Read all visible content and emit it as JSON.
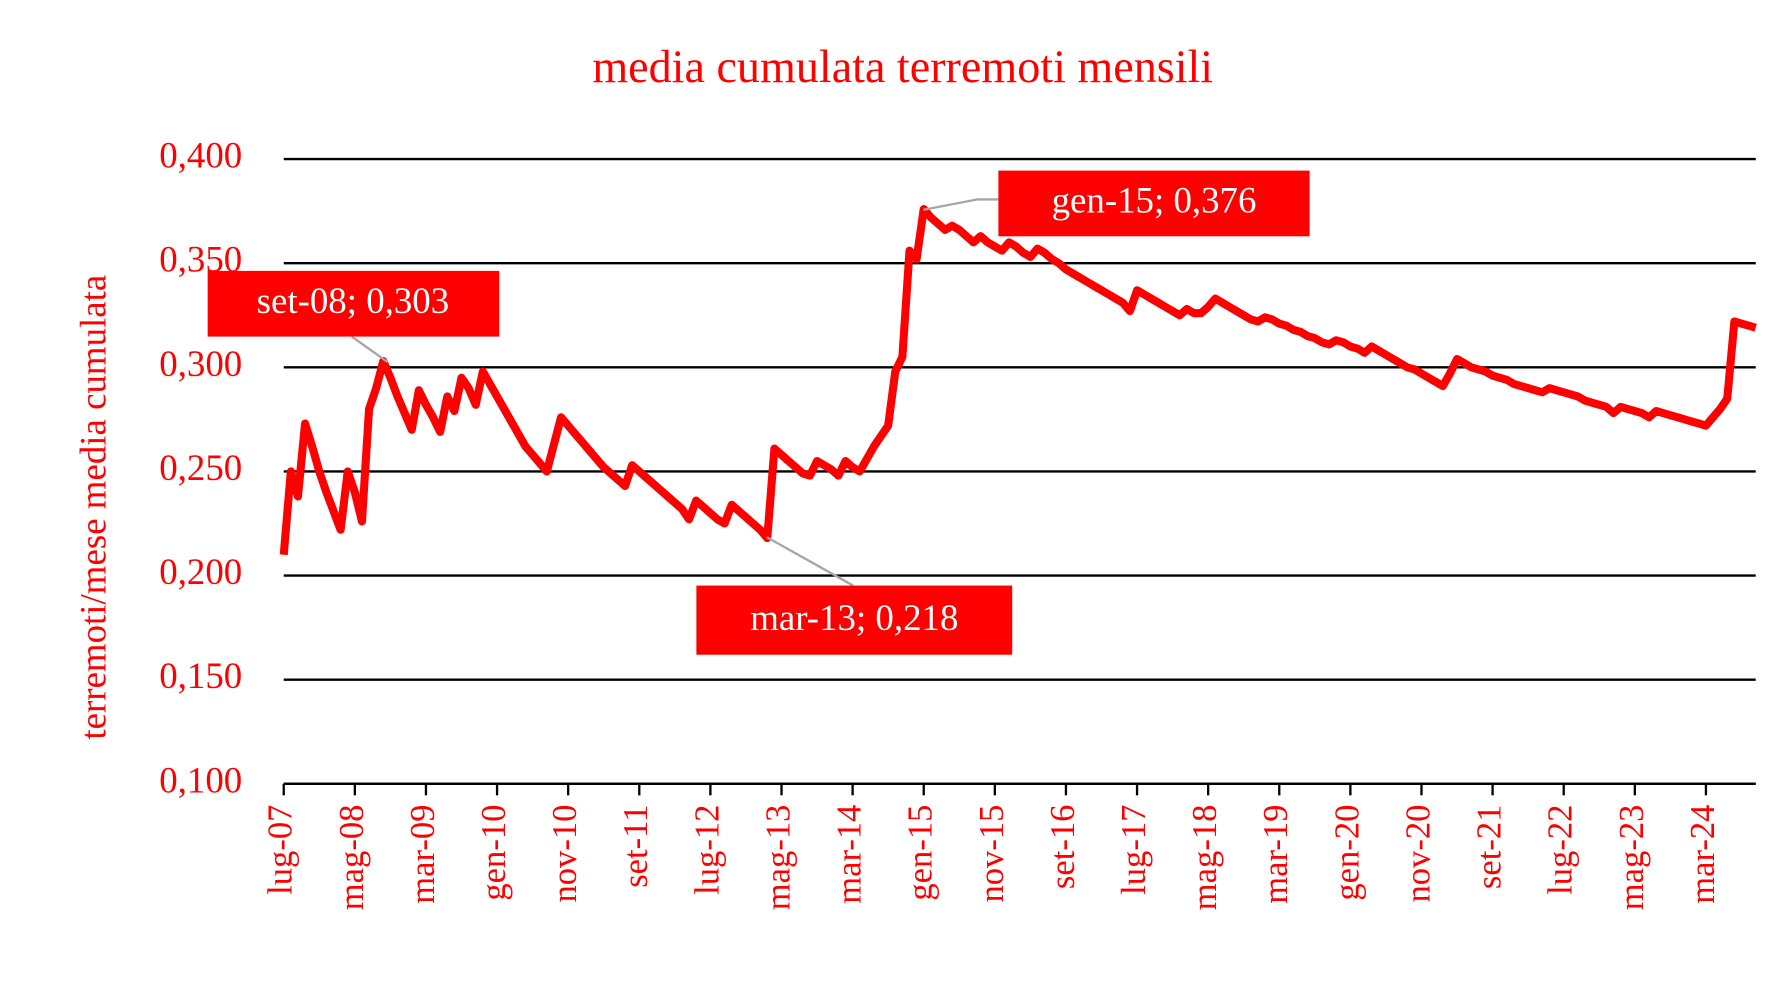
{
  "chart_data": {
    "type": "line",
    "title": "media cumulata terremoti mensili",
    "y_label": "terremoti/mese media cumulata",
    "categories": [
      "lug-07",
      null,
      null,
      null,
      null,
      null,
      null,
      null,
      null,
      null,
      "mag-08",
      null,
      null,
      null,
      null,
      null,
      null,
      null,
      null,
      null,
      "mar-09",
      null,
      null,
      null,
      null,
      null,
      null,
      null,
      null,
      null,
      "gen-10",
      null,
      null,
      null,
      null,
      null,
      null,
      null,
      null,
      null,
      "nov-10",
      null,
      null,
      null,
      null,
      null,
      null,
      null,
      null,
      null,
      "set-11",
      null,
      null,
      null,
      null,
      null,
      null,
      null,
      null,
      null,
      "lug-12",
      null,
      null,
      null,
      null,
      null,
      null,
      null,
      null,
      null,
      "mag-13",
      null,
      null,
      null,
      null,
      null,
      null,
      null,
      null,
      null,
      "mar-14",
      null,
      null,
      null,
      null,
      null,
      null,
      null,
      null,
      null,
      "gen-15",
      null,
      null,
      null,
      null,
      null,
      null,
      null,
      null,
      null,
      "nov-15",
      null,
      null,
      null,
      null,
      null,
      null,
      null,
      null,
      null,
      "set-16",
      null,
      null,
      null,
      null,
      null,
      null,
      null,
      null,
      null,
      "lug-17",
      null,
      null,
      null,
      null,
      null,
      null,
      null,
      null,
      null,
      "mag-18",
      null,
      null,
      null,
      null,
      null,
      null,
      null,
      null,
      null,
      "mar-19",
      null,
      null,
      null,
      null,
      null,
      null,
      null,
      null,
      null,
      "gen-20",
      null,
      null,
      null,
      null,
      null,
      null,
      null,
      null,
      null,
      "nov-20",
      null,
      null,
      null,
      null,
      null,
      null,
      null,
      null,
      null,
      "set-21",
      null,
      null,
      null,
      null,
      null,
      null,
      null,
      null,
      null,
      "lug-22",
      null,
      null,
      null,
      null,
      null,
      null,
      null,
      null,
      null,
      "mag-23",
      null,
      null,
      null,
      null,
      null,
      null,
      null,
      null,
      null,
      "mar-24",
      null,
      null,
      null,
      null,
      null,
      null,
      null
    ],
    "series": [
      {
        "name": "media cumulata",
        "color": "#ff0000",
        "values": [
          0.21,
          0.25,
          0.238,
          0.273,
          0.262,
          0.25,
          0.24,
          0.231,
          0.222,
          0.25,
          0.24,
          0.226,
          0.28,
          0.29,
          0.303,
          0.295,
          0.286,
          0.278,
          0.27,
          0.289,
          0.282,
          0.276,
          0.269,
          0.286,
          0.279,
          0.295,
          0.29,
          0.282,
          0.298,
          0.292,
          0.286,
          0.28,
          0.274,
          0.268,
          0.262,
          0.258,
          0.254,
          0.25,
          0.263,
          0.276,
          0.272,
          0.268,
          0.264,
          0.26,
          0.256,
          0.252,
          0.249,
          0.246,
          0.243,
          0.253,
          0.25,
          0.247,
          0.244,
          0.241,
          0.238,
          0.235,
          0.232,
          0.227,
          0.236,
          0.233,
          0.23,
          0.227,
          0.225,
          0.234,
          0.231,
          0.228,
          0.225,
          0.222,
          0.218,
          0.261,
          0.258,
          0.255,
          0.252,
          0.249,
          0.248,
          0.255,
          0.253,
          0.251,
          0.248,
          0.255,
          0.252,
          0.25,
          0.256,
          0.262,
          0.267,
          0.272,
          0.298,
          0.305,
          0.356,
          0.352,
          0.376,
          0.372,
          0.369,
          0.366,
          0.368,
          0.366,
          0.363,
          0.36,
          0.363,
          0.36,
          0.358,
          0.356,
          0.36,
          0.358,
          0.355,
          0.353,
          0.357,
          0.355,
          0.352,
          0.35,
          0.347,
          0.345,
          0.343,
          0.341,
          0.339,
          0.337,
          0.335,
          0.333,
          0.331,
          0.327,
          0.337,
          0.335,
          0.333,
          0.331,
          0.329,
          0.327,
          0.325,
          0.328,
          0.326,
          0.326,
          0.329,
          0.333,
          0.331,
          0.329,
          0.327,
          0.325,
          0.323,
          0.322,
          0.324,
          0.323,
          0.321,
          0.32,
          0.318,
          0.317,
          0.315,
          0.314,
          0.312,
          0.311,
          0.313,
          0.312,
          0.31,
          0.309,
          0.307,
          0.31,
          0.308,
          0.306,
          0.304,
          0.302,
          0.3,
          0.299,
          0.297,
          0.295,
          0.293,
          0.291,
          0.297,
          0.304,
          0.302,
          0.3,
          0.299,
          0.298,
          0.296,
          0.295,
          0.294,
          0.292,
          0.291,
          0.29,
          0.289,
          0.288,
          0.29,
          0.289,
          0.288,
          0.287,
          0.286,
          0.284,
          0.283,
          0.282,
          0.281,
          0.278,
          0.281,
          0.28,
          0.279,
          0.278,
          0.276,
          0.279,
          0.278,
          0.277,
          0.276,
          0.275,
          0.274,
          0.273,
          0.272,
          0.276,
          0.28,
          0.285,
          0.322,
          0.321,
          0.32,
          0.319
        ]
      }
    ],
    "ylim": [
      0.1,
      0.4
    ],
    "yticks": [
      {
        "value": 0.1,
        "label": "0,100"
      },
      {
        "value": 0.15,
        "label": "0,150"
      },
      {
        "value": 0.2,
        "label": "0,200"
      },
      {
        "value": 0.25,
        "label": "0,250"
      },
      {
        "value": 0.3,
        "label": "0,300"
      },
      {
        "value": 0.35,
        "label": "0,350"
      },
      {
        "value": 0.4,
        "label": "0,400"
      }
    ],
    "grid": true,
    "annotations": [
      "set-08; 0,303",
      "mar-13; 0,218",
      "gen-15; 0,376"
    ]
  }
}
